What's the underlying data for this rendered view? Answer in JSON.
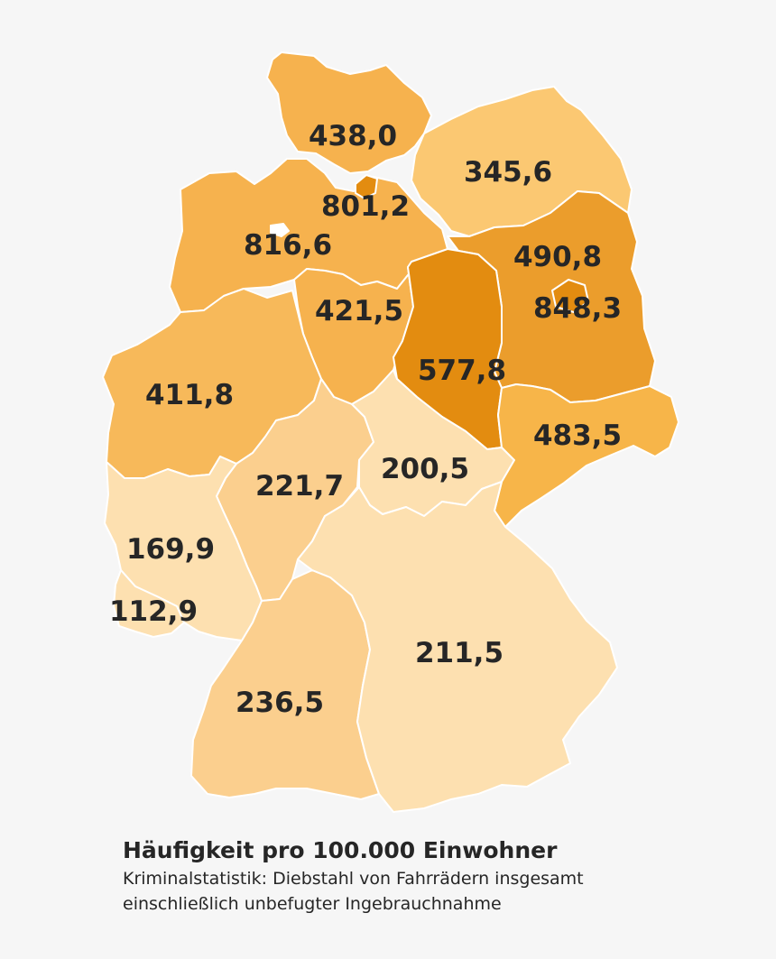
{
  "map": {
    "states": [
      {
        "id": "schleswig-holstein",
        "value": "438,0",
        "color": "#f6b24e"
      },
      {
        "id": "hamburg",
        "value": "801,2",
        "color": "#e38c10"
      },
      {
        "id": "mecklenburg-vorpommern",
        "value": "345,6",
        "color": "#fbc872"
      },
      {
        "id": "niedersachsen",
        "value": "816,6",
        "color": "#f6b24e"
      },
      {
        "id": "bremen",
        "value": "",
        "color": "#ffffff"
      },
      {
        "id": "brandenburg",
        "value": "490,8",
        "color": "#eb9d2c"
      },
      {
        "id": "berlin",
        "value": "848,3",
        "color": "#e38c10"
      },
      {
        "id": "sachsen-anhalt",
        "value": "577,8",
        "color": "#e38c10"
      },
      {
        "id": "nordrhein-westfalen",
        "value": "411,8",
        "color": "#f7b95a"
      },
      {
        "id": "niedersachsen-sued",
        "value": "421,5",
        "color": "#f6b24e"
      },
      {
        "id": "sachsen",
        "value": "483,5",
        "color": "#f7b549"
      },
      {
        "id": "hessen",
        "value": "221,7",
        "color": "#fbcf8e"
      },
      {
        "id": "thueringen",
        "value": "200,5",
        "color": "#fde0b0"
      },
      {
        "id": "rheinland-pfalz",
        "value": "169,9",
        "color": "#fde0b0"
      },
      {
        "id": "saarland",
        "value": "112,9",
        "color": "#fde0b0"
      },
      {
        "id": "bayern",
        "value": "211,5",
        "color": "#fde0b0"
      },
      {
        "id": "baden-wuerttemberg",
        "value": "236,5",
        "color": "#fbcf8e"
      }
    ]
  },
  "caption": {
    "title": "Häufigkeit pro 100.000 Einwohner",
    "line1": "Kriminalstatistik: Diebstahl von Fahrrädern insgesamt",
    "line2": "einschließlich unbefugter Ingebrauchnahme"
  }
}
